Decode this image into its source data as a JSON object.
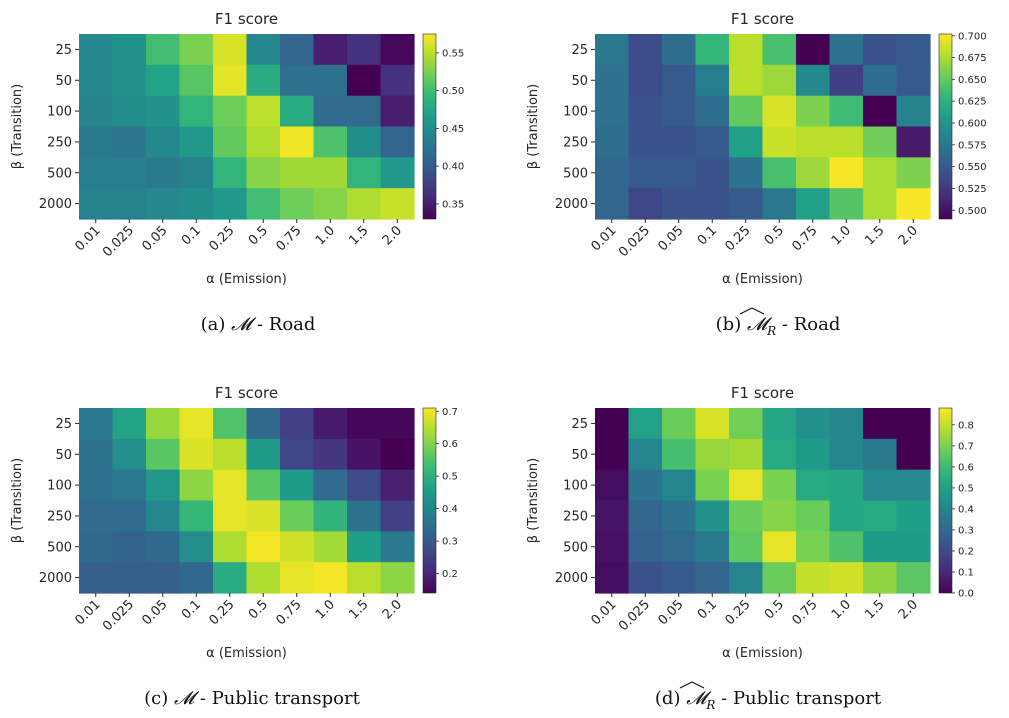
{
  "colormap": [
    "#440154",
    "#482878",
    "#3e4989",
    "#31688e",
    "#26828e",
    "#1f9e89",
    "#35b779",
    "#6ece58",
    "#b5de2b",
    "#fde725"
  ],
  "panels": [
    {
      "caption_label": "(a) ",
      "caption_math": "𝓜",
      "caption_suffix": " - Road",
      "hat": false,
      "chart_data": {
        "type": "heatmap",
        "title": "F1 score",
        "xlabel": "α (Emission)",
        "ylabel": "β (Transition)",
        "x": [
          "0.01",
          "0.025",
          "0.05",
          "0.1",
          "0.25",
          "0.5",
          "0.75",
          "1.0",
          "1.5",
          "2.0"
        ],
        "y": [
          "25",
          "50",
          "100",
          "250",
          "500",
          "2000"
        ],
        "vmin": 0.33,
        "vmax": 0.575,
        "colorbar_ticks": [
          "0.35",
          "0.40",
          "0.45",
          "0.50",
          "0.55"
        ],
        "values": [
          [
            0.445,
            0.455,
            0.5,
            0.525,
            0.56,
            0.445,
            0.41,
            0.35,
            0.365,
            0.335
          ],
          [
            0.445,
            0.455,
            0.47,
            0.51,
            0.565,
            0.48,
            0.42,
            0.42,
            0.33,
            0.365
          ],
          [
            0.44,
            0.45,
            0.455,
            0.49,
            0.52,
            0.55,
            0.48,
            0.415,
            0.415,
            0.35
          ],
          [
            0.43,
            0.425,
            0.445,
            0.46,
            0.515,
            0.545,
            0.57,
            0.505,
            0.45,
            0.41
          ],
          [
            0.435,
            0.435,
            0.43,
            0.44,
            0.49,
            0.53,
            0.54,
            0.54,
            0.49,
            0.46
          ],
          [
            0.44,
            0.44,
            0.445,
            0.45,
            0.46,
            0.5,
            0.52,
            0.53,
            0.545,
            0.555
          ]
        ]
      }
    },
    {
      "caption_label": "(b) ",
      "caption_math": "𝓜",
      "caption_sub": "R",
      "caption_suffix": " - Road",
      "hat": true,
      "chart_data": {
        "type": "heatmap",
        "title": "F1 score",
        "xlabel": "α (Emission)",
        "ylabel": "β (Transition)",
        "x": [
          "0.01",
          "0.025",
          "0.05",
          "0.1",
          "0.25",
          "0.5",
          "0.75",
          "1.0",
          "1.5",
          "2.0"
        ],
        "y": [
          "25",
          "50",
          "100",
          "250",
          "500",
          "2000"
        ],
        "vmin": 0.49,
        "vmax": 0.702,
        "colorbar_ticks": [
          "0.500",
          "0.525",
          "0.550",
          "0.575",
          "0.600",
          "0.625",
          "0.650",
          "0.675",
          "0.700"
        ],
        "values": [
          [
            0.575,
            0.54,
            0.565,
            0.63,
            0.68,
            0.64,
            0.49,
            0.57,
            0.545,
            0.55
          ],
          [
            0.57,
            0.54,
            0.55,
            0.58,
            0.68,
            0.67,
            0.59,
            0.53,
            0.565,
            0.55
          ],
          [
            0.57,
            0.545,
            0.55,
            0.565,
            0.65,
            0.69,
            0.66,
            0.635,
            0.49,
            0.585
          ],
          [
            0.565,
            0.545,
            0.545,
            0.55,
            0.61,
            0.685,
            0.68,
            0.68,
            0.655,
            0.505
          ],
          [
            0.56,
            0.55,
            0.55,
            0.545,
            0.57,
            0.64,
            0.67,
            0.7,
            0.675,
            0.66
          ],
          [
            0.56,
            0.535,
            0.545,
            0.545,
            0.55,
            0.575,
            0.61,
            0.645,
            0.675,
            0.7
          ]
        ]
      }
    },
    {
      "caption_label": "(c) ",
      "caption_math": "𝓜",
      "caption_suffix": " - Public transport",
      "hat": false,
      "chart_data": {
        "type": "heatmap",
        "title": "F1 score",
        "xlabel": "α (Emission)",
        "ylabel": "β (Transition)",
        "x": [
          "0.01",
          "0.025",
          "0.05",
          "0.1",
          "0.25",
          "0.5",
          "0.75",
          "1.0",
          "1.5",
          "2.0"
        ],
        "y": [
          "25",
          "50",
          "100",
          "250",
          "500",
          "2000"
        ],
        "vmin": 0.14,
        "vmax": 0.71,
        "colorbar_ticks": [
          "0.2",
          "0.3",
          "0.4",
          "0.5",
          "0.6",
          "0.7"
        ],
        "values": [
          [
            0.37,
            0.47,
            0.62,
            0.69,
            0.55,
            0.33,
            0.25,
            0.18,
            0.15,
            0.15
          ],
          [
            0.36,
            0.42,
            0.56,
            0.68,
            0.65,
            0.45,
            0.26,
            0.23,
            0.17,
            0.14
          ],
          [
            0.35,
            0.37,
            0.44,
            0.61,
            0.69,
            0.56,
            0.45,
            0.34,
            0.27,
            0.19
          ],
          [
            0.34,
            0.34,
            0.4,
            0.52,
            0.69,
            0.68,
            0.58,
            0.51,
            0.36,
            0.25
          ],
          [
            0.33,
            0.32,
            0.33,
            0.42,
            0.64,
            0.7,
            0.67,
            0.63,
            0.46,
            0.37
          ],
          [
            0.31,
            0.31,
            0.31,
            0.33,
            0.49,
            0.64,
            0.69,
            0.7,
            0.65,
            0.61
          ]
        ]
      }
    },
    {
      "caption_label": "(d) ",
      "caption_math": "𝓜",
      "caption_sub": "R",
      "caption_suffix": " - Public transport",
      "hat": true,
      "chart_data": {
        "type": "heatmap",
        "title": "F1 score",
        "xlabel": "α (Emission)",
        "ylabel": "β (Transition)",
        "x": [
          "0.01",
          "0.025",
          "0.05",
          "0.1",
          "0.25",
          "0.5",
          "0.75",
          "1.0",
          "1.5",
          "2.0"
        ],
        "y": [
          "25",
          "50",
          "100",
          "250",
          "500",
          "2000"
        ],
        "vmin": 0.0,
        "vmax": 0.88,
        "colorbar_ticks": [
          "0.0",
          "0.1",
          "0.2",
          "0.3",
          "0.4",
          "0.5",
          "0.6",
          "0.7",
          "0.8"
        ],
        "values": [
          [
            0.0,
            0.5,
            0.68,
            0.83,
            0.69,
            0.52,
            0.44,
            0.41,
            0.0,
            0.0
          ],
          [
            0.0,
            0.4,
            0.62,
            0.74,
            0.76,
            0.53,
            0.48,
            0.4,
            0.36,
            0.0
          ],
          [
            0.03,
            0.33,
            0.4,
            0.7,
            0.85,
            0.7,
            0.53,
            0.52,
            0.42,
            0.42
          ],
          [
            0.05,
            0.29,
            0.33,
            0.45,
            0.68,
            0.72,
            0.68,
            0.52,
            0.53,
            0.49
          ],
          [
            0.04,
            0.27,
            0.3,
            0.36,
            0.66,
            0.85,
            0.7,
            0.63,
            0.48,
            0.48
          ],
          [
            0.03,
            0.22,
            0.25,
            0.28,
            0.4,
            0.68,
            0.8,
            0.82,
            0.73,
            0.65
          ]
        ]
      }
    }
  ]
}
